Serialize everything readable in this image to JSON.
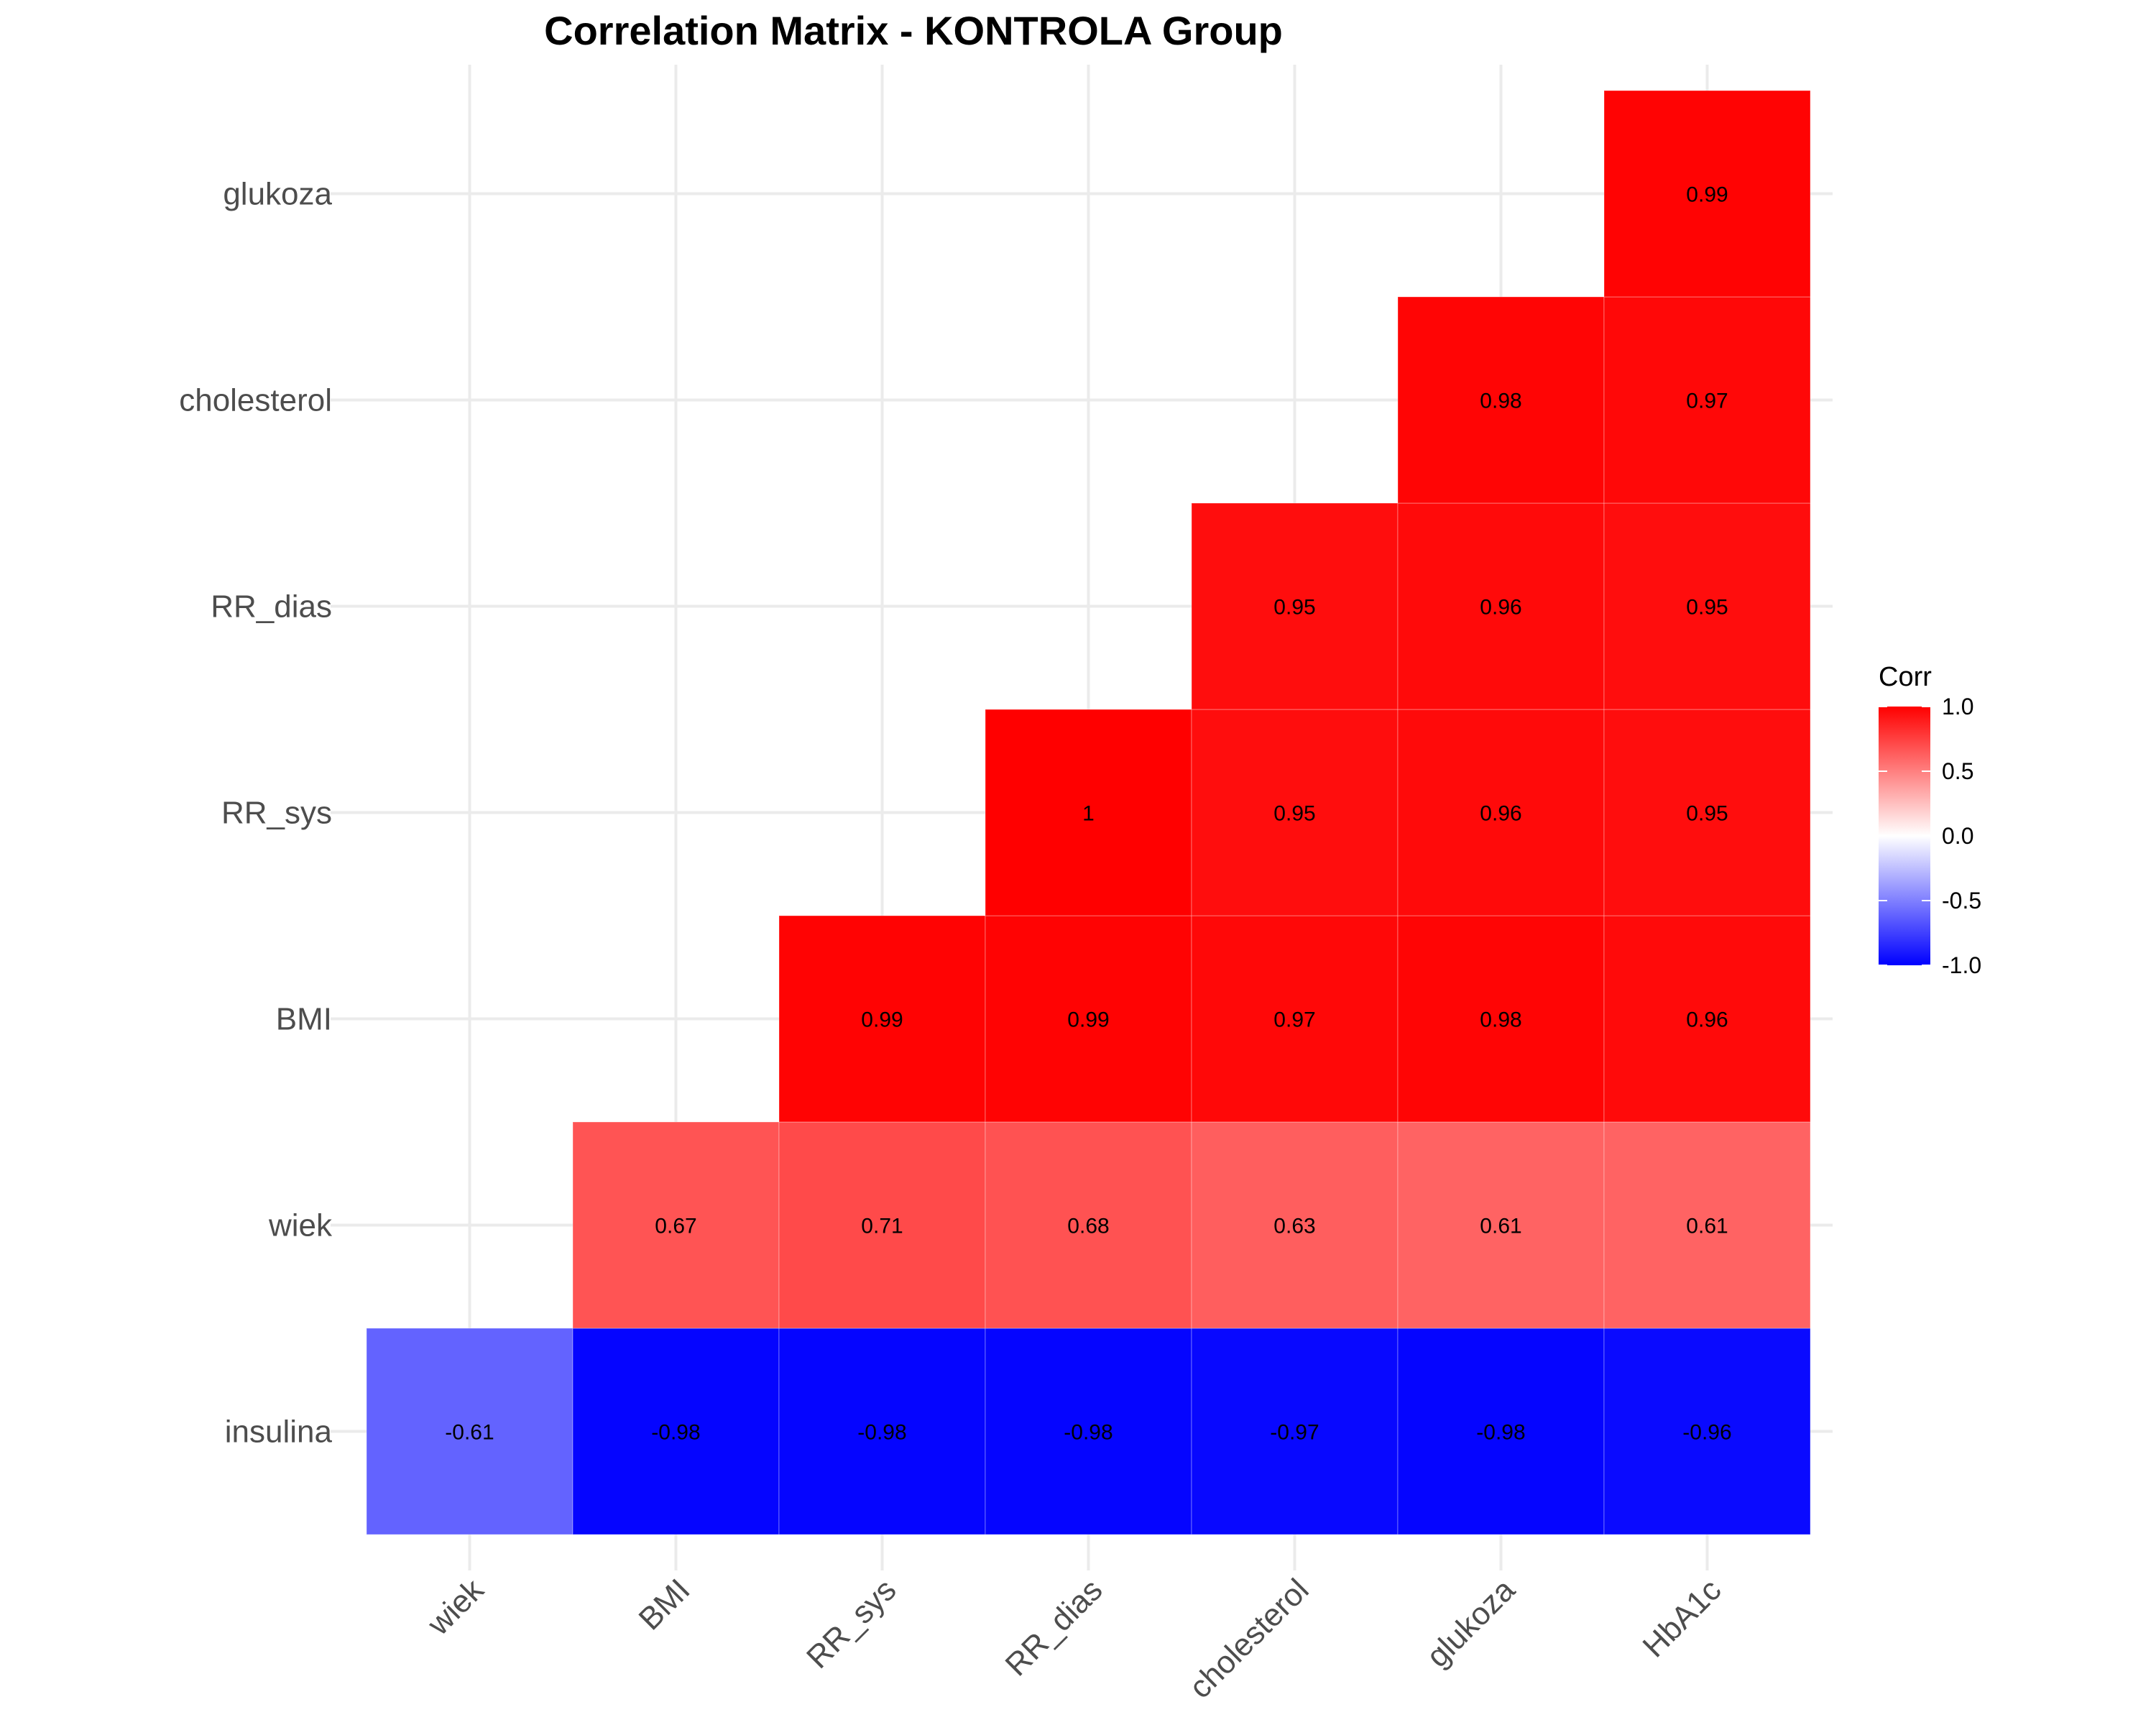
{
  "chart_data": {
    "type": "heatmap",
    "title": "Correlation Matrix - KONTROLA Group",
    "x_categories": [
      "wiek",
      "BMI",
      "RR_sys",
      "RR_dias",
      "cholesterol",
      "glukoza",
      "HbA1c"
    ],
    "y_categories": [
      "insulina",
      "wiek",
      "BMI",
      "RR_sys",
      "RR_dias",
      "cholesterol",
      "glukoza"
    ],
    "cells": [
      {
        "x": "wiek",
        "y": "insulina",
        "value": -0.61,
        "label": "-0.61"
      },
      {
        "x": "BMI",
        "y": "insulina",
        "value": -0.98,
        "label": "-0.98"
      },
      {
        "x": "RR_sys",
        "y": "insulina",
        "value": -0.98,
        "label": "-0.98"
      },
      {
        "x": "RR_dias",
        "y": "insulina",
        "value": -0.98,
        "label": "-0.98"
      },
      {
        "x": "cholesterol",
        "y": "insulina",
        "value": -0.97,
        "label": "-0.97"
      },
      {
        "x": "glukoza",
        "y": "insulina",
        "value": -0.98,
        "label": "-0.98"
      },
      {
        "x": "HbA1c",
        "y": "insulina",
        "value": -0.96,
        "label": "-0.96"
      },
      {
        "x": "BMI",
        "y": "wiek",
        "value": 0.67,
        "label": "0.67"
      },
      {
        "x": "RR_sys",
        "y": "wiek",
        "value": 0.71,
        "label": "0.71"
      },
      {
        "x": "RR_dias",
        "y": "wiek",
        "value": 0.68,
        "label": "0.68"
      },
      {
        "x": "cholesterol",
        "y": "wiek",
        "value": 0.63,
        "label": "0.63"
      },
      {
        "x": "glukoza",
        "y": "wiek",
        "value": 0.61,
        "label": "0.61"
      },
      {
        "x": "HbA1c",
        "y": "wiek",
        "value": 0.61,
        "label": "0.61"
      },
      {
        "x": "RR_sys",
        "y": "BMI",
        "value": 0.99,
        "label": "0.99"
      },
      {
        "x": "RR_dias",
        "y": "BMI",
        "value": 0.99,
        "label": "0.99"
      },
      {
        "x": "cholesterol",
        "y": "BMI",
        "value": 0.97,
        "label": "0.97"
      },
      {
        "x": "glukoza",
        "y": "BMI",
        "value": 0.98,
        "label": "0.98"
      },
      {
        "x": "HbA1c",
        "y": "BMI",
        "value": 0.96,
        "label": "0.96"
      },
      {
        "x": "RR_dias",
        "y": "RR_sys",
        "value": 1.0,
        "label": "1"
      },
      {
        "x": "cholesterol",
        "y": "RR_sys",
        "value": 0.95,
        "label": "0.95"
      },
      {
        "x": "glukoza",
        "y": "RR_sys",
        "value": 0.96,
        "label": "0.96"
      },
      {
        "x": "HbA1c",
        "y": "RR_sys",
        "value": 0.95,
        "label": "0.95"
      },
      {
        "x": "cholesterol",
        "y": "RR_dias",
        "value": 0.95,
        "label": "0.95"
      },
      {
        "x": "glukoza",
        "y": "RR_dias",
        "value": 0.96,
        "label": "0.96"
      },
      {
        "x": "HbA1c",
        "y": "RR_dias",
        "value": 0.95,
        "label": "0.95"
      },
      {
        "x": "glukoza",
        "y": "cholesterol",
        "value": 0.98,
        "label": "0.98"
      },
      {
        "x": "HbA1c",
        "y": "cholesterol",
        "value": 0.97,
        "label": "0.97"
      },
      {
        "x": "HbA1c",
        "y": "glukoza",
        "value": 0.99,
        "label": "0.99"
      }
    ],
    "color_scale": {
      "low": "#0000ff",
      "mid": "#ffffff",
      "high": "#ff0000",
      "limits": [
        -1,
        1
      ]
    },
    "legend": {
      "title": "Corr",
      "ticks": [
        {
          "value": 1.0,
          "label": "1.0"
        },
        {
          "value": 0.5,
          "label": "0.5"
        },
        {
          "value": 0.0,
          "label": "0.0"
        },
        {
          "value": -0.5,
          "label": "-0.5"
        },
        {
          "value": -1.0,
          "label": "-1.0"
        }
      ],
      "placement": "right"
    },
    "grid": true,
    "xlabel": "",
    "ylabel": ""
  }
}
